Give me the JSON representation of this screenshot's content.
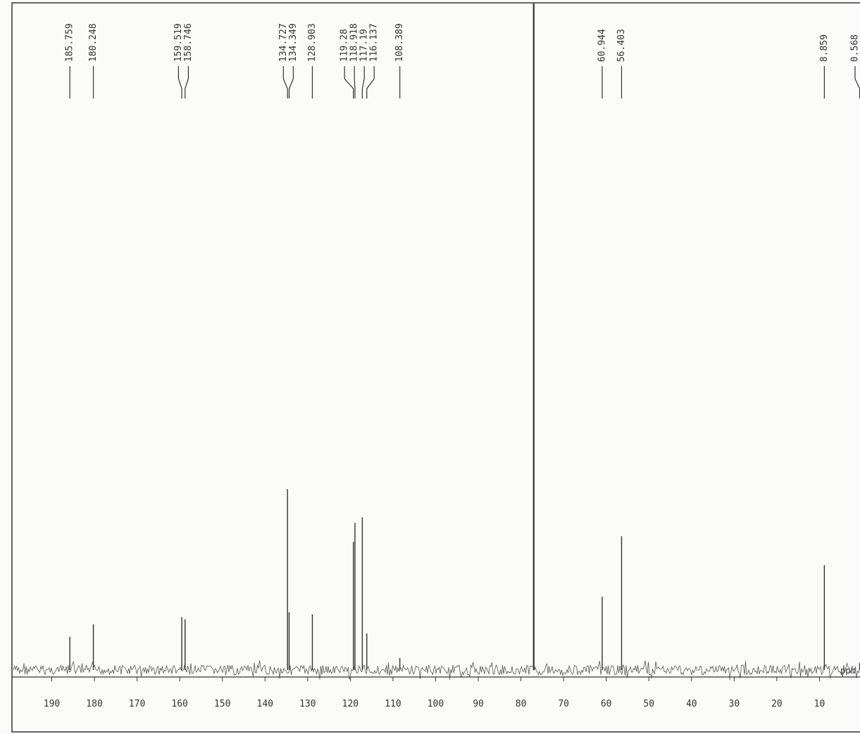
{
  "chart_data": {
    "type": "spectrum",
    "x_label": "ppm",
    "series": [
      {
        "x": [
          185.759,
          180.248,
          159.519,
          158.746,
          134.727,
          134.349,
          128.903,
          119.28,
          118.918,
          117.19,
          116.137,
          108.389,
          60.944,
          56.403,
          8.859,
          0.568
        ],
        "values": [
          47,
          65,
          75,
          72,
          257,
          82,
          79,
          182,
          209,
          217,
          52,
          17,
          104,
          190,
          149,
          10
        ]
      },
      {
        "x": [
          77.0
        ],
        "values": [
          947
        ]
      }
    ],
    "xlim": [
      199,
      0.5
    ],
    "ylim": [
      0,
      947
    ],
    "xticks": [
      190,
      180,
      170,
      160,
      150,
      140,
      130,
      120,
      110,
      100,
      90,
      80,
      70,
      60,
      50,
      40,
      30,
      20,
      10
    ],
    "color": "#333333"
  }
}
